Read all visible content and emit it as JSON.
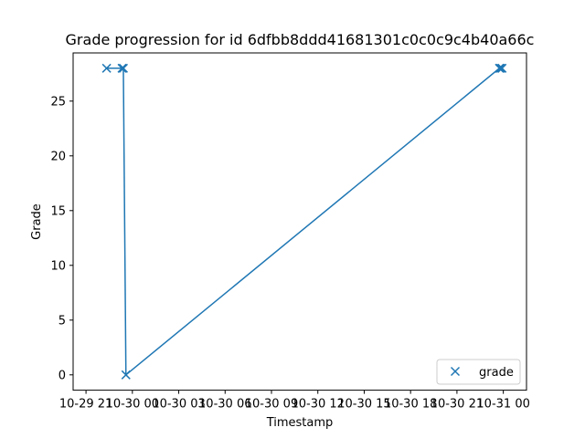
{
  "chart_data": {
    "type": "line",
    "title": "Grade progression for id 6dfbb8ddd41681301c0c0c9c4b40a66c",
    "xlabel": "Timestamp",
    "ylabel": "Grade",
    "x_tick_labels": [
      "10-29 21",
      "10-30 00",
      "10-30 03",
      "10-30 06",
      "10-30 09",
      "10-30 12",
      "10-30 15",
      "10-30 18",
      "10-30 21",
      "10-31 00"
    ],
    "y_tick_labels": [
      "0",
      "5",
      "10",
      "15",
      "20",
      "25"
    ],
    "ylim": [
      -1.4,
      29.4
    ],
    "xlim": [
      "2023-10-29 20:10",
      "2023-10-31 01:30"
    ],
    "x_ticks": [
      "2023-10-29 21:00",
      "2023-10-30 00:00",
      "2023-10-30 03:00",
      "2023-10-30 06:00",
      "2023-10-30 09:00",
      "2023-10-30 12:00",
      "2023-10-30 15:00",
      "2023-10-30 18:00",
      "2023-10-30 21:00",
      "2023-10-31 00:00"
    ],
    "y_ticks": [
      0,
      5,
      10,
      15,
      20,
      25
    ],
    "series": [
      {
        "name": "grade",
        "color": "#1f77b4",
        "marker": "x",
        "x": [
          "2023-10-29 22:20",
          "2023-10-29 23:20",
          "2023-10-29 23:25",
          "2023-10-29 23:35",
          "2023-10-30 23:45",
          "2023-10-30 23:50",
          "2023-10-30 23:55"
        ],
        "y": [
          28,
          28,
          28,
          0,
          28,
          28,
          28
        ]
      }
    ],
    "legend": {
      "position": "bottom-right",
      "entries": [
        "grade"
      ]
    },
    "grid": false
  }
}
